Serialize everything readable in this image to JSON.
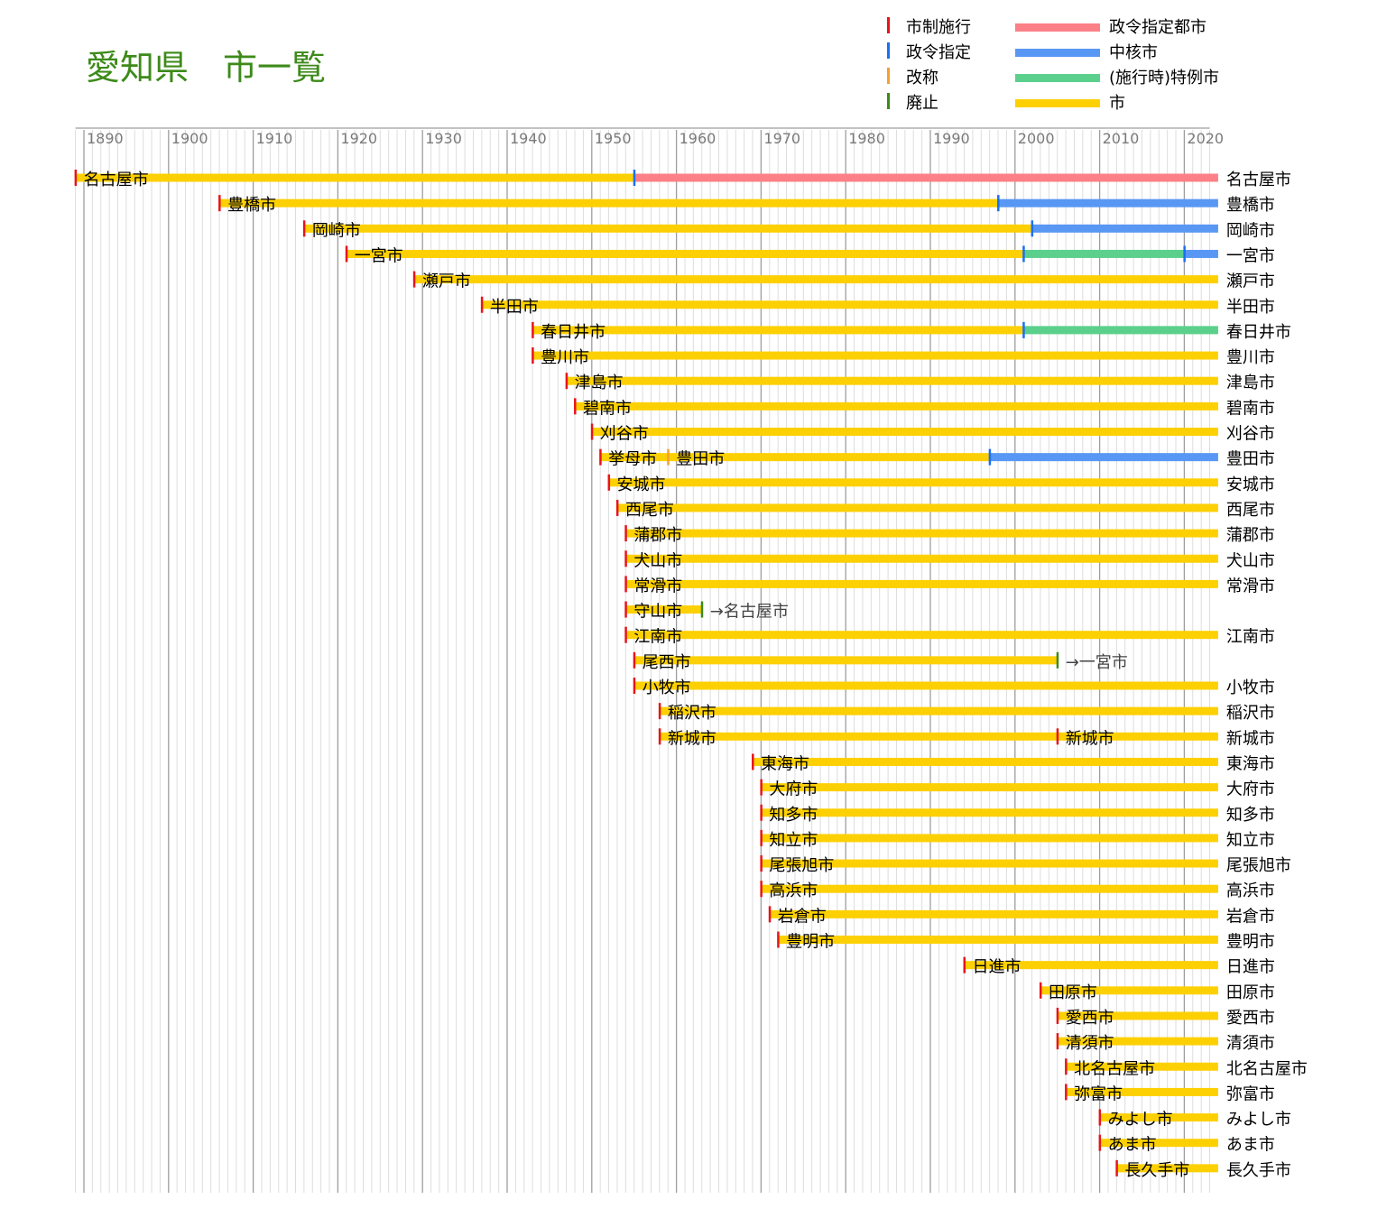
{
  "title": "愛知県　市一覧",
  "colors": {
    "shisei": "#e8141a",
    "seirei": "#1b6ff2",
    "kaisho": "#f4a030",
    "haishi": "#3d8a1a",
    "seirei_bar": "#fb8088",
    "chukaku_bar": "#5898f4",
    "tokurei_bar": "#5bd08c",
    "shi_bar": "#fdd003",
    "title": "#3d8a1a"
  },
  "legend": {
    "markers": [
      {
        "label": "市制施行",
        "color_key": "shisei"
      },
      {
        "label": "政令指定",
        "color_key": "seirei"
      },
      {
        "label": "改称",
        "color_key": "kaisho"
      },
      {
        "label": "廃止",
        "color_key": "haishi"
      }
    ],
    "bars": [
      {
        "label": "政令指定都市",
        "color_key": "seirei_bar"
      },
      {
        "label": "中核市",
        "color_key": "chukaku_bar"
      },
      {
        "label": "(施行時)特例市",
        "color_key": "tokurei_bar"
      },
      {
        "label": "市",
        "color_key": "shi_bar"
      }
    ]
  },
  "chart_data": {
    "type": "timeline",
    "x_range": [
      1889,
      2024
    ],
    "x_ticks": [
      1890,
      1900,
      1910,
      1920,
      1930,
      1940,
      1950,
      1960,
      1970,
      1980,
      1990,
      2000,
      2010,
      2020
    ],
    "rows": [
      {
        "start": 1889.0,
        "start_name": "名古屋市",
        "right_name": "名古屋市",
        "segments": [
          {
            "from": 1889.0,
            "to": 1955.0,
            "type": "shi"
          },
          {
            "from": 1955.0,
            "to": 2024,
            "type": "seirei"
          }
        ],
        "markers": [
          {
            "year": 1955.0,
            "type": "seirei"
          }
        ]
      },
      {
        "start": 1906.0,
        "start_name": "豊橋市",
        "right_name": "豊橋市",
        "segments": [
          {
            "from": 1906.0,
            "to": 1998.0,
            "type": "shi"
          },
          {
            "from": 1998.0,
            "to": 2024,
            "type": "chukaku"
          }
        ],
        "markers": [
          {
            "year": 1998.0,
            "type": "seirei"
          }
        ]
      },
      {
        "start": 1916.0,
        "start_name": "岡崎市",
        "right_name": "岡崎市",
        "segments": [
          {
            "from": 1916.0,
            "to": 2002.0,
            "type": "shi"
          },
          {
            "from": 2002.0,
            "to": 2024,
            "type": "chukaku"
          }
        ],
        "markers": [
          {
            "year": 2002.0,
            "type": "seirei"
          }
        ]
      },
      {
        "start": 1921.0,
        "start_name": "一宮市",
        "right_name": "一宮市",
        "segments": [
          {
            "from": 1921.0,
            "to": 2001.0,
            "type": "shi"
          },
          {
            "from": 2001.0,
            "to": 2020.0,
            "type": "tokurei"
          },
          {
            "from": 2020.0,
            "to": 2024,
            "type": "chukaku"
          }
        ],
        "markers": [
          {
            "year": 2001.0,
            "type": "seirei"
          },
          {
            "year": 2020.0,
            "type": "seirei"
          }
        ]
      },
      {
        "start": 1929.0,
        "start_name": "瀬戸市",
        "right_name": "瀬戸市",
        "segments": [
          {
            "from": 1929.0,
            "to": 2024,
            "type": "shi"
          }
        ],
        "markers": []
      },
      {
        "start": 1937.0,
        "start_name": "半田市",
        "right_name": "半田市",
        "segments": [
          {
            "from": 1937.0,
            "to": 2024,
            "type": "shi"
          }
        ],
        "markers": []
      },
      {
        "start": 1943.0,
        "start_name": "春日井市",
        "right_name": "春日井市",
        "segments": [
          {
            "from": 1943.0,
            "to": 2001.0,
            "type": "shi"
          },
          {
            "from": 2001.0,
            "to": 2024,
            "type": "tokurei"
          }
        ],
        "markers": [
          {
            "year": 2001.0,
            "type": "seirei"
          }
        ]
      },
      {
        "start": 1943.0,
        "start_name": "豊川市",
        "right_name": "豊川市",
        "segments": [
          {
            "from": 1943.0,
            "to": 2024,
            "type": "shi"
          }
        ],
        "markers": []
      },
      {
        "start": 1947.0,
        "start_name": "津島市",
        "right_name": "津島市",
        "segments": [
          {
            "from": 1947.0,
            "to": 2024,
            "type": "shi"
          }
        ],
        "markers": []
      },
      {
        "start": 1948.0,
        "start_name": "碧南市",
        "right_name": "碧南市",
        "segments": [
          {
            "from": 1948.0,
            "to": 2024,
            "type": "shi"
          }
        ],
        "markers": []
      },
      {
        "start": 1950.0,
        "start_name": "刈谷市",
        "right_name": "刈谷市",
        "segments": [
          {
            "from": 1950.0,
            "to": 2024,
            "type": "shi"
          }
        ],
        "markers": []
      },
      {
        "start": 1951.0,
        "start_name": "挙母市",
        "right_name": "豊田市",
        "segments": [
          {
            "from": 1951.0,
            "to": 1997.0,
            "type": "shi"
          },
          {
            "from": 1997.0,
            "to": 2024,
            "type": "chukaku"
          }
        ],
        "markers": [
          {
            "year": 1959.0,
            "type": "kaisho",
            "name": "豊田市"
          },
          {
            "year": 1997.0,
            "type": "seirei"
          }
        ]
      },
      {
        "start": 1952.0,
        "start_name": "安城市",
        "right_name": "安城市",
        "segments": [
          {
            "from": 1952.0,
            "to": 2024,
            "type": "shi"
          }
        ],
        "markers": []
      },
      {
        "start": 1953.0,
        "start_name": "西尾市",
        "right_name": "西尾市",
        "segments": [
          {
            "from": 1953.0,
            "to": 2024,
            "type": "shi"
          }
        ],
        "markers": []
      },
      {
        "start": 1954.0,
        "start_name": "蒲郡市",
        "right_name": "蒲郡市",
        "segments": [
          {
            "from": 1954.0,
            "to": 2024,
            "type": "shi"
          }
        ],
        "markers": []
      },
      {
        "start": 1954.0,
        "start_name": "犬山市",
        "right_name": "犬山市",
        "segments": [
          {
            "from": 1954.0,
            "to": 2024,
            "type": "shi"
          }
        ],
        "markers": []
      },
      {
        "start": 1954.0,
        "start_name": "常滑市",
        "right_name": "常滑市",
        "segments": [
          {
            "from": 1954.0,
            "to": 2024,
            "type": "shi"
          }
        ],
        "markers": []
      },
      {
        "start": 1954.0,
        "start_name": "守山市",
        "right_name": "",
        "segments": [
          {
            "from": 1954.0,
            "to": 1963.0,
            "type": "shi"
          }
        ],
        "markers": [
          {
            "year": 1963.0,
            "type": "haishi"
          }
        ],
        "end_note": "→名古屋市"
      },
      {
        "start": 1954.0,
        "start_name": "江南市",
        "right_name": "江南市",
        "segments": [
          {
            "from": 1954.0,
            "to": 2024,
            "type": "shi"
          }
        ],
        "markers": []
      },
      {
        "start": 1955.0,
        "start_name": "尾西市",
        "right_name": "",
        "segments": [
          {
            "from": 1955.0,
            "to": 2005.0,
            "type": "shi"
          }
        ],
        "markers": [
          {
            "year": 2005.0,
            "type": "haishi"
          }
        ],
        "end_note": "→一宮市"
      },
      {
        "start": 1955.0,
        "start_name": "小牧市",
        "right_name": "小牧市",
        "segments": [
          {
            "from": 1955.0,
            "to": 2024,
            "type": "shi"
          }
        ],
        "markers": []
      },
      {
        "start": 1958.0,
        "start_name": "稲沢市",
        "right_name": "稲沢市",
        "segments": [
          {
            "from": 1958.0,
            "to": 2024,
            "type": "shi"
          }
        ],
        "markers": []
      },
      {
        "start": 1958.0,
        "start_name": "新城市",
        "right_name": "新城市",
        "segments": [
          {
            "from": 1958.0,
            "to": 2024,
            "type": "shi"
          }
        ],
        "markers": [
          {
            "year": 2005.0,
            "type": "shisei",
            "name": "新城市"
          }
        ]
      },
      {
        "start": 1969.0,
        "start_name": "東海市",
        "right_name": "東海市",
        "segments": [
          {
            "from": 1969.0,
            "to": 2024,
            "type": "shi"
          }
        ],
        "markers": []
      },
      {
        "start": 1970.0,
        "start_name": "大府市",
        "right_name": "大府市",
        "segments": [
          {
            "from": 1970.0,
            "to": 2024,
            "type": "shi"
          }
        ],
        "markers": []
      },
      {
        "start": 1970.0,
        "start_name": "知多市",
        "right_name": "知多市",
        "segments": [
          {
            "from": 1970.0,
            "to": 2024,
            "type": "shi"
          }
        ],
        "markers": []
      },
      {
        "start": 1970.0,
        "start_name": "知立市",
        "right_name": "知立市",
        "segments": [
          {
            "from": 1970.0,
            "to": 2024,
            "type": "shi"
          }
        ],
        "markers": []
      },
      {
        "start": 1970.0,
        "start_name": "尾張旭市",
        "right_name": "尾張旭市",
        "segments": [
          {
            "from": 1970.0,
            "to": 2024,
            "type": "shi"
          }
        ],
        "markers": []
      },
      {
        "start": 1970.0,
        "start_name": "高浜市",
        "right_name": "高浜市",
        "segments": [
          {
            "from": 1970.0,
            "to": 2024,
            "type": "shi"
          }
        ],
        "markers": []
      },
      {
        "start": 1971.0,
        "start_name": "岩倉市",
        "right_name": "岩倉市",
        "segments": [
          {
            "from": 1971.0,
            "to": 2024,
            "type": "shi"
          }
        ],
        "markers": []
      },
      {
        "start": 1972.0,
        "start_name": "豊明市",
        "right_name": "豊明市",
        "segments": [
          {
            "from": 1972.0,
            "to": 2024,
            "type": "shi"
          }
        ],
        "markers": []
      },
      {
        "start": 1994.0,
        "start_name": "日進市",
        "right_name": "日進市",
        "segments": [
          {
            "from": 1994.0,
            "to": 2024,
            "type": "shi"
          }
        ],
        "markers": []
      },
      {
        "start": 2003.0,
        "start_name": "田原市",
        "right_name": "田原市",
        "segments": [
          {
            "from": 2003.0,
            "to": 2024,
            "type": "shi"
          }
        ],
        "markers": []
      },
      {
        "start": 2005.0,
        "start_name": "愛西市",
        "right_name": "愛西市",
        "segments": [
          {
            "from": 2005.0,
            "to": 2024,
            "type": "shi"
          }
        ],
        "markers": []
      },
      {
        "start": 2005.0,
        "start_name": "清須市",
        "right_name": "清須市",
        "segments": [
          {
            "from": 2005.0,
            "to": 2024,
            "type": "shi"
          }
        ],
        "markers": []
      },
      {
        "start": 2006.0,
        "start_name": "北名古屋市",
        "right_name": "北名古屋市",
        "segments": [
          {
            "from": 2006.0,
            "to": 2024,
            "type": "shi"
          }
        ],
        "markers": []
      },
      {
        "start": 2006.0,
        "start_name": "弥富市",
        "right_name": "弥富市",
        "segments": [
          {
            "from": 2006.0,
            "to": 2024,
            "type": "shi"
          }
        ],
        "markers": []
      },
      {
        "start": 2010.0,
        "start_name": "みよし市",
        "right_name": "みよし市",
        "segments": [
          {
            "from": 2010.0,
            "to": 2024,
            "type": "shi"
          }
        ],
        "markers": []
      },
      {
        "start": 2010.0,
        "start_name": "あま市",
        "right_name": "あま市",
        "segments": [
          {
            "from": 2010.0,
            "to": 2024,
            "type": "shi"
          }
        ],
        "markers": []
      },
      {
        "start": 2012.0,
        "start_name": "長久手市",
        "right_name": "長久手市",
        "segments": [
          {
            "from": 2012.0,
            "to": 2024,
            "type": "shi"
          }
        ],
        "markers": []
      }
    ]
  }
}
